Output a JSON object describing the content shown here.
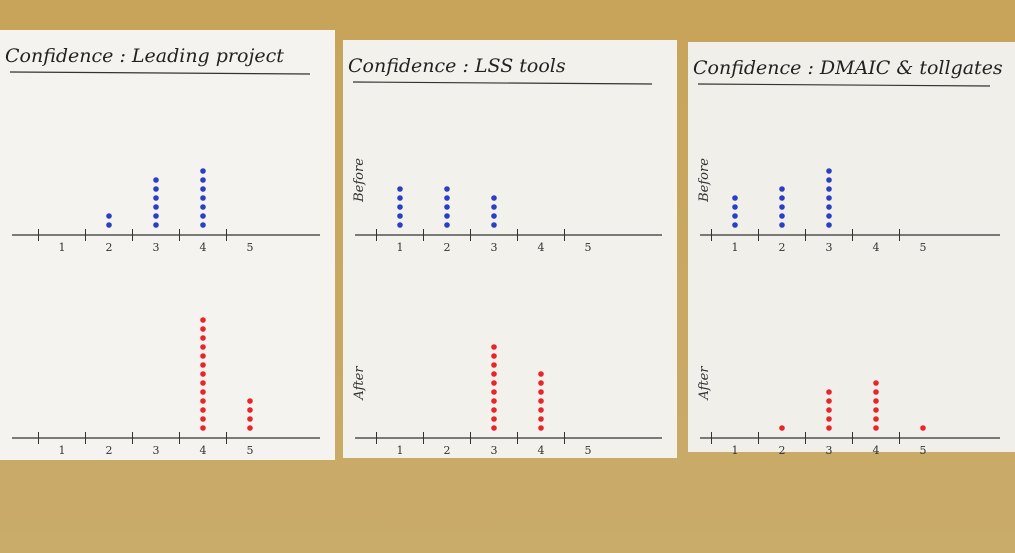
{
  "chart_data": [
    {
      "type": "dot",
      "title": "Confidence : Leading project",
      "categories": [
        "1",
        "2",
        "3",
        "4",
        "5"
      ],
      "series": [
        {
          "color": "#2b3fc4",
          "values": [
            0,
            2,
            6,
            7,
            0
          ]
        },
        {
          "color": "#e8262a",
          "values": [
            0,
            0,
            0,
            13,
            4
          ]
        }
      ]
    },
    {
      "type": "dot",
      "title": "Confidence : LSS tools",
      "categories": [
        "1",
        "2",
        "3",
        "4",
        "5"
      ],
      "series": [
        {
          "name": "Before",
          "color": "#2b3fc4",
          "values": [
            5,
            5,
            4,
            0,
            0
          ]
        },
        {
          "name": "After",
          "color": "#e8262a",
          "values": [
            0,
            0,
            10,
            7,
            0
          ]
        }
      ]
    },
    {
      "type": "dot",
      "title": "Confidence : DMAIC & tollgates",
      "categories": [
        "1",
        "2",
        "3",
        "4",
        "5"
      ],
      "series": [
        {
          "name": "Before",
          "color": "#2b3fc4",
          "values": [
            4,
            5,
            7,
            0,
            0
          ]
        },
        {
          "name": "After",
          "color": "#e8262a",
          "values": [
            0,
            1,
            5,
            6,
            1
          ]
        }
      ]
    }
  ]
}
